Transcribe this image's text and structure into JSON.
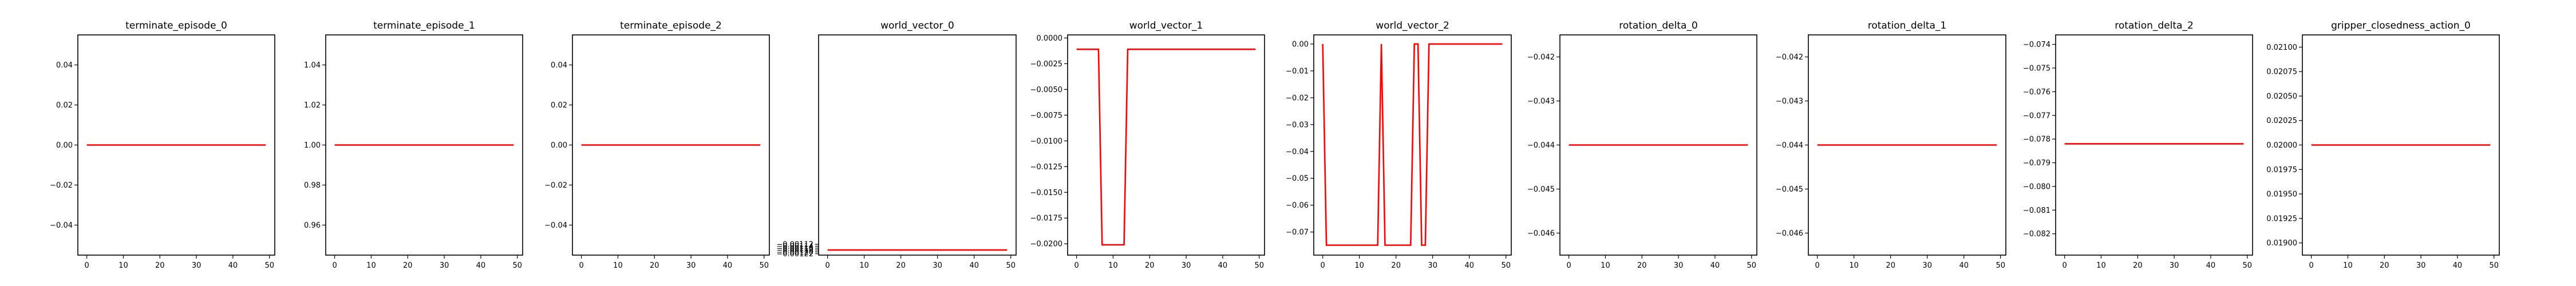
{
  "chart_data": [
    {
      "type": "line",
      "title": "terminate_episode_0",
      "xlim": [
        -2.45,
        51.45
      ],
      "ylim": [
        -0.055,
        0.055
      ],
      "xticks": [
        0,
        10,
        20,
        30,
        40,
        50
      ],
      "yticks": [
        -0.04,
        -0.02,
        0.0,
        0.02,
        0.04
      ],
      "ytick_labels": [
        "−0.04",
        "−0.02",
        "0.00",
        "0.02",
        "0.04"
      ],
      "series": [
        {
          "color": "#ff0000",
          "x": [
            0,
            49
          ],
          "y": [
            0,
            0
          ]
        }
      ]
    },
    {
      "type": "line",
      "title": "terminate_episode_1",
      "xlim": [
        -2.45,
        51.45
      ],
      "ylim": [
        0.945,
        1.055
      ],
      "xticks": [
        0,
        10,
        20,
        30,
        40,
        50
      ],
      "yticks": [
        0.96,
        0.98,
        1.0,
        1.02,
        1.04
      ],
      "ytick_labels": [
        "0.96",
        "0.98",
        "1.00",
        "1.02",
        "1.04"
      ],
      "series": [
        {
          "color": "#ff0000",
          "x": [
            0,
            49
          ],
          "y": [
            1,
            1
          ]
        }
      ]
    },
    {
      "type": "line",
      "title": "terminate_episode_2",
      "xlim": [
        -2.45,
        51.45
      ],
      "ylim": [
        -0.055,
        0.055
      ],
      "xticks": [
        0,
        10,
        20,
        30,
        40,
        50
      ],
      "yticks": [
        -0.04,
        -0.02,
        0.0,
        0.02,
        0.04
      ],
      "ytick_labels": [
        "−0.04",
        "−0.02",
        "0.00",
        "0.02",
        "0.04"
      ],
      "series": [
        {
          "color": "#ff0000",
          "x": [
            0,
            49
          ],
          "y": [
            0,
            0
          ]
        }
      ]
    },
    {
      "type": "line",
      "title": "world_vector_0",
      "xlim": [
        -2.45,
        51.45
      ],
      "ylim": [
        -0.001235,
        0.001125
      ],
      "xticks": [
        0,
        10,
        20,
        30,
        40,
        50
      ],
      "yticks": [
        -0.00122,
        -0.0012,
        -0.00118,
        -0.00116,
        -0.00114,
        -0.00112
      ],
      "ytick_labels": [
        "−0.00122",
        "−0.00120",
        "−0.00118",
        "−0.00116",
        "−0.00114",
        "−0.00112"
      ],
      "ytick_values": [
        -0.00122,
        -0.0012,
        -0.00118,
        -0.00116,
        -0.00114,
        -0.00112
      ],
      "note_axis": "labels shown decreasing downward",
      "series": [
        {
          "color": "#ff0000",
          "x": [
            0,
            49
          ],
          "y": [
            -0.00118,
            -0.00118
          ]
        }
      ]
    },
    {
      "type": "line",
      "title": "world_vector_1",
      "xlim": [
        -2.45,
        51.45
      ],
      "ylim": [
        -0.0211,
        0.0003
      ],
      "xticks": [
        0,
        10,
        20,
        30,
        40,
        50
      ],
      "yticks": [
        -0.02,
        -0.0175,
        -0.015,
        -0.0125,
        -0.01,
        -0.0075,
        -0.005,
        -0.0025,
        0.0
      ],
      "ytick_labels": [
        "−0.0200",
        "−0.0175",
        "−0.0150",
        "−0.0125",
        "−0.0100",
        "−0.0075",
        "−0.0050",
        "−0.0025",
        "0.0000"
      ],
      "series": [
        {
          "color": "#ff0000",
          "x": [
            0,
            6,
            7,
            13,
            14,
            49
          ],
          "y": [
            -0.0011,
            -0.0011,
            -0.0201,
            -0.0201,
            -0.0011,
            -0.0011
          ]
        }
      ]
    },
    {
      "type": "line",
      "title": "world_vector_2",
      "xlim": [
        -2.45,
        51.45
      ],
      "ylim": [
        -0.0786,
        0.0034
      ],
      "xticks": [
        0,
        10,
        20,
        30,
        40,
        50
      ],
      "yticks": [
        -0.07,
        -0.06,
        -0.05,
        -0.04,
        -0.03,
        -0.02,
        -0.01,
        0.0
      ],
      "ytick_labels": [
        "−0.07",
        "−0.06",
        "−0.05",
        "−0.04",
        "−0.03",
        "−0.02",
        "−0.01",
        "0.00"
      ],
      "series": [
        {
          "color": "#ff0000",
          "x": [
            0,
            1,
            15,
            16,
            17,
            24,
            25,
            26,
            27,
            28,
            29,
            30,
            49
          ],
          "y": [
            0,
            -0.0749,
            -0.0749,
            0,
            -0.0749,
            -0.0749,
            0,
            0,
            -0.0749,
            -0.0749,
            0,
            0,
            0
          ]
        }
      ]
    },
    {
      "type": "line",
      "title": "rotation_delta_0",
      "xlim": [
        -2.45,
        51.45
      ],
      "ylim": [
        -0.0465,
        -0.0415
      ],
      "xticks": [
        0,
        10,
        20,
        30,
        40,
        50
      ],
      "yticks": [
        -0.046,
        -0.045,
        -0.044,
        -0.043,
        -0.042
      ],
      "ytick_labels": [
        "−0.046",
        "−0.045",
        "−0.044",
        "−0.043",
        "−0.042"
      ],
      "series": [
        {
          "color": "#ff0000",
          "x": [
            0,
            49
          ],
          "y": [
            -0.044,
            -0.044
          ]
        }
      ]
    },
    {
      "type": "line",
      "title": "rotation_delta_1",
      "xlim": [
        -2.45,
        51.45
      ],
      "ylim": [
        -0.0465,
        -0.0415
      ],
      "xticks": [
        0,
        10,
        20,
        30,
        40,
        50
      ],
      "yticks": [
        -0.046,
        -0.045,
        -0.044,
        -0.043,
        -0.042
      ],
      "ytick_labels": [
        "−0.046",
        "−0.045",
        "−0.044",
        "−0.043",
        "−0.042"
      ],
      "series": [
        {
          "color": "#ff0000",
          "x": [
            0,
            49
          ],
          "y": [
            -0.044,
            -0.044
          ]
        }
      ]
    },
    {
      "type": "line",
      "title": "rotation_delta_2",
      "xlim": [
        -2.45,
        51.45
      ],
      "ylim": [
        -0.0829,
        -0.0736
      ],
      "xticks": [
        0,
        10,
        20,
        30,
        40,
        50
      ],
      "yticks": [
        -0.082,
        -0.081,
        -0.08,
        -0.079,
        -0.078,
        -0.077,
        -0.076,
        -0.075,
        -0.074
      ],
      "ytick_labels": [
        "−0.082",
        "−0.081",
        "−0.080",
        "−0.079",
        "−0.078",
        "−0.077",
        "−0.076",
        "−0.075",
        "−0.074"
      ],
      "series": [
        {
          "color": "#ff0000",
          "x": [
            0,
            49
          ],
          "y": [
            -0.0782,
            -0.0782
          ]
        }
      ]
    },
    {
      "type": "line",
      "title": "gripper_closedness_action_0",
      "xlim": [
        -2.45,
        51.45
      ],
      "ylim": [
        0.018875,
        0.021125
      ],
      "xticks": [
        0,
        10,
        20,
        30,
        40,
        50
      ],
      "yticks": [
        0.019,
        0.01925,
        0.0195,
        0.01975,
        0.02,
        0.02025,
        0.0205,
        0.02075,
        0.021
      ],
      "ytick_labels": [
        "0.01900",
        "0.01925",
        "0.01950",
        "0.01975",
        "0.02000",
        "0.02025",
        "0.02050",
        "0.02075",
        "0.02100"
      ],
      "series": [
        {
          "color": "#ff0000",
          "x": [
            0,
            49
          ],
          "y": [
            0.02,
            0.02
          ]
        }
      ]
    }
  ]
}
